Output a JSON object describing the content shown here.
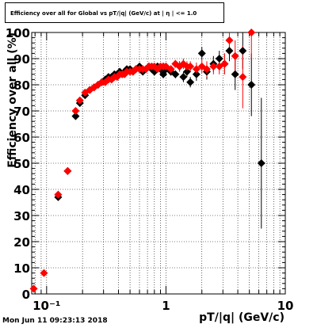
{
  "title": "Efficiency over all for Global vs pT/|q| (GeV/c) at | η | <= 1.0",
  "timestamp": "Mon Jun 11 09:23:13 2018",
  "chart_data": {
    "type": "scatter",
    "title": "Efficiency over all for Global vs pT/|q| (GeV/c) at | η | <= 1.0",
    "xlabel": "pT/|q| (GeV/c)",
    "ylabel": "Efficiency over all (%)",
    "xscale": "log",
    "xlim": [
      0.075,
      10
    ],
    "ylim": [
      0,
      100
    ],
    "grid": true,
    "x_tick_labels": [
      "10⁻¹",
      "1",
      "10"
    ],
    "y_tick_labels": [
      "0",
      "10",
      "20",
      "30",
      "40",
      "50",
      "60",
      "70",
      "80",
      "90",
      "100"
    ],
    "series": [
      {
        "color": "#000000",
        "marker": "diamond",
        "points": [
          [
            0.125,
            37,
            1
          ],
          [
            0.15,
            47,
            1
          ],
          [
            0.175,
            68,
            1.2
          ],
          [
            0.19,
            73,
            1.2
          ],
          [
            0.21,
            76,
            1
          ],
          [
            0.23,
            78,
            1
          ],
          [
            0.25,
            79,
            1
          ],
          [
            0.27,
            80,
            1
          ],
          [
            0.29,
            81,
            1
          ],
          [
            0.31,
            82,
            1
          ],
          [
            0.33,
            83,
            1
          ],
          [
            0.35,
            83,
            1
          ],
          [
            0.37,
            84,
            1
          ],
          [
            0.39,
            84,
            1
          ],
          [
            0.41,
            85,
            1
          ],
          [
            0.43,
            84,
            1
          ],
          [
            0.45,
            85,
            1
          ],
          [
            0.47,
            86,
            1
          ],
          [
            0.5,
            86,
            1
          ],
          [
            0.53,
            85,
            1
          ],
          [
            0.56,
            86,
            1
          ],
          [
            0.6,
            87,
            1
          ],
          [
            0.64,
            85,
            1
          ],
          [
            0.68,
            86,
            1
          ],
          [
            0.72,
            87,
            1
          ],
          [
            0.76,
            86,
            1
          ],
          [
            0.8,
            85,
            1
          ],
          [
            0.85,
            87,
            1
          ],
          [
            0.9,
            86,
            1
          ],
          [
            0.95,
            84,
            1.5
          ],
          [
            1.0,
            86,
            1.5
          ],
          [
            1.1,
            85,
            1.5
          ],
          [
            1.2,
            84,
            1.5
          ],
          [
            1.3,
            87,
            2
          ],
          [
            1.4,
            83,
            2
          ],
          [
            1.5,
            85,
            2
          ],
          [
            1.6,
            81,
            2
          ],
          [
            1.8,
            84,
            2.5
          ],
          [
            2.0,
            92,
            2.5
          ],
          [
            2.2,
            85,
            3
          ],
          [
            2.5,
            88,
            3
          ],
          [
            2.8,
            90,
            3
          ],
          [
            3.1,
            88,
            4
          ],
          [
            3.4,
            93,
            4
          ],
          [
            3.8,
            84,
            6
          ],
          [
            4.4,
            93,
            7
          ],
          [
            5.2,
            80,
            12
          ],
          [
            6.3,
            50,
            25
          ]
        ]
      },
      {
        "color": "#ff0000",
        "marker": "diamond",
        "points": [
          [
            0.078,
            2,
            1
          ],
          [
            0.095,
            8,
            1
          ],
          [
            0.125,
            38,
            1
          ],
          [
            0.15,
            47,
            1
          ],
          [
            0.175,
            70,
            1.2
          ],
          [
            0.19,
            74,
            1.2
          ],
          [
            0.21,
            77,
            1
          ],
          [
            0.23,
            78,
            1
          ],
          [
            0.25,
            79,
            1
          ],
          [
            0.27,
            80,
            1
          ],
          [
            0.29,
            81,
            1
          ],
          [
            0.31,
            81,
            1
          ],
          [
            0.33,
            82,
            1
          ],
          [
            0.35,
            82,
            1
          ],
          [
            0.37,
            83,
            1
          ],
          [
            0.39,
            83,
            1
          ],
          [
            0.41,
            84,
            1
          ],
          [
            0.43,
            84,
            1
          ],
          [
            0.45,
            84,
            1
          ],
          [
            0.47,
            85,
            1
          ],
          [
            0.5,
            85,
            1
          ],
          [
            0.53,
            85,
            1
          ],
          [
            0.56,
            86,
            1
          ],
          [
            0.6,
            86,
            1
          ],
          [
            0.64,
            86,
            1
          ],
          [
            0.68,
            86,
            1
          ],
          [
            0.72,
            87,
            1
          ],
          [
            0.76,
            87,
            1
          ],
          [
            0.8,
            87,
            1
          ],
          [
            0.85,
            86,
            1
          ],
          [
            0.9,
            87,
            1
          ],
          [
            0.95,
            87,
            1.5
          ],
          [
            1.0,
            87,
            1.5
          ],
          [
            1.1,
            86,
            1.5
          ],
          [
            1.2,
            88,
            1.5
          ],
          [
            1.3,
            87,
            2
          ],
          [
            1.4,
            88,
            2
          ],
          [
            1.5,
            87,
            2
          ],
          [
            1.6,
            87,
            2
          ],
          [
            1.8,
            86,
            2.5
          ],
          [
            2.0,
            87,
            2.5
          ],
          [
            2.2,
            86,
            3
          ],
          [
            2.5,
            87,
            3
          ],
          [
            2.8,
            87,
            3
          ],
          [
            3.1,
            88,
            4
          ],
          [
            3.4,
            97,
            4
          ],
          [
            3.8,
            91,
            6
          ],
          [
            4.4,
            83,
            12
          ],
          [
            5.2,
            100,
            10
          ]
        ]
      }
    ]
  }
}
